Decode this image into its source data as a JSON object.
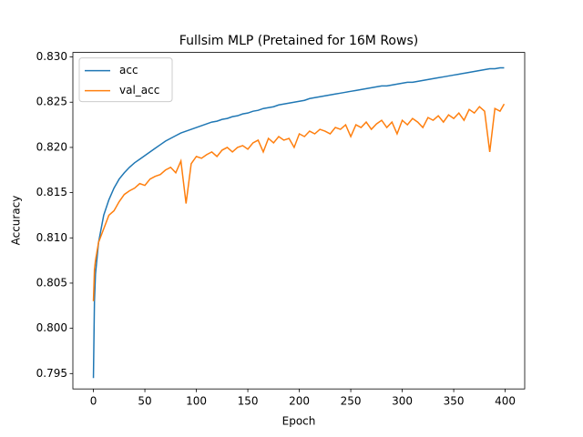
{
  "chart_data": {
    "type": "line",
    "title": "Fullsim MLP (Pretained for 16M Rows)",
    "x_label": "Epoch",
    "y_label": "Accuracy",
    "x": [
      0,
      1,
      2,
      5,
      10,
      15,
      20,
      25,
      30,
      35,
      40,
      45,
      50,
      55,
      60,
      65,
      70,
      75,
      80,
      85,
      90,
      95,
      100,
      105,
      110,
      115,
      120,
      125,
      130,
      135,
      140,
      145,
      150,
      155,
      160,
      165,
      170,
      175,
      180,
      185,
      190,
      195,
      200,
      205,
      210,
      215,
      220,
      225,
      230,
      235,
      240,
      245,
      250,
      255,
      260,
      265,
      270,
      275,
      280,
      285,
      290,
      295,
      300,
      305,
      310,
      315,
      320,
      325,
      330,
      335,
      340,
      345,
      350,
      355,
      360,
      365,
      370,
      375,
      380,
      385,
      390,
      395,
      399
    ],
    "series": [
      {
        "name": "acc",
        "color": "#1f77b4",
        "values": [
          0.7945,
          0.803,
          0.806,
          0.8095,
          0.8125,
          0.8142,
          0.8155,
          0.8165,
          0.8172,
          0.8178,
          0.8183,
          0.8187,
          0.8191,
          0.8195,
          0.8199,
          0.8203,
          0.8207,
          0.821,
          0.8213,
          0.8216,
          0.8218,
          0.822,
          0.8222,
          0.8224,
          0.8226,
          0.8228,
          0.8229,
          0.8231,
          0.8232,
          0.8234,
          0.8235,
          0.8237,
          0.8238,
          0.824,
          0.8241,
          0.8243,
          0.8244,
          0.8245,
          0.8247,
          0.8248,
          0.8249,
          0.825,
          0.8251,
          0.8252,
          0.8254,
          0.8255,
          0.8256,
          0.8257,
          0.8258,
          0.8259,
          0.826,
          0.8261,
          0.8262,
          0.8263,
          0.8264,
          0.8265,
          0.8266,
          0.8267,
          0.8268,
          0.8268,
          0.8269,
          0.827,
          0.8271,
          0.8272,
          0.8272,
          0.8273,
          0.8274,
          0.8275,
          0.8276,
          0.8277,
          0.8278,
          0.8279,
          0.828,
          0.8281,
          0.8282,
          0.8283,
          0.8284,
          0.8285,
          0.8286,
          0.8287,
          0.8287,
          0.8288,
          0.8288
        ]
      },
      {
        "name": "val_acc",
        "color": "#ff7f0e",
        "values": [
          0.803,
          0.8065,
          0.8075,
          0.8095,
          0.811,
          0.8125,
          0.813,
          0.814,
          0.8148,
          0.8152,
          0.8155,
          0.816,
          0.8158,
          0.8165,
          0.8168,
          0.817,
          0.8175,
          0.8178,
          0.8172,
          0.8185,
          0.8138,
          0.8182,
          0.819,
          0.8188,
          0.8192,
          0.8195,
          0.819,
          0.8197,
          0.82,
          0.8195,
          0.82,
          0.8202,
          0.8198,
          0.8205,
          0.8208,
          0.8195,
          0.821,
          0.8205,
          0.8212,
          0.8208,
          0.821,
          0.82,
          0.8215,
          0.8212,
          0.8218,
          0.8215,
          0.822,
          0.8218,
          0.8215,
          0.8222,
          0.822,
          0.8225,
          0.8212,
          0.8225,
          0.8222,
          0.8228,
          0.822,
          0.8226,
          0.823,
          0.8222,
          0.8228,
          0.8215,
          0.823,
          0.8225,
          0.8232,
          0.8228,
          0.8222,
          0.8233,
          0.823,
          0.8235,
          0.8228,
          0.8236,
          0.8232,
          0.8238,
          0.823,
          0.8242,
          0.8238,
          0.8245,
          0.824,
          0.8195,
          0.8243,
          0.824,
          0.8248
        ]
      }
    ],
    "xlim": [
      -19.95,
      418.95
    ],
    "ylim": [
      0.7933,
      0.8305
    ],
    "xticks": [
      0,
      50,
      100,
      150,
      200,
      250,
      300,
      350,
      400
    ],
    "yticks": [
      0.795,
      {
        "value": 0.8,
        "label": "0.800"
      },
      0.805,
      {
        "value": 0.81,
        "label": "0.810"
      },
      0.815,
      {
        "value": 0.82,
        "label": "0.820"
      },
      0.825,
      {
        "value": 0.83,
        "label": "0.830"
      }
    ],
    "legend": "upper left"
  }
}
